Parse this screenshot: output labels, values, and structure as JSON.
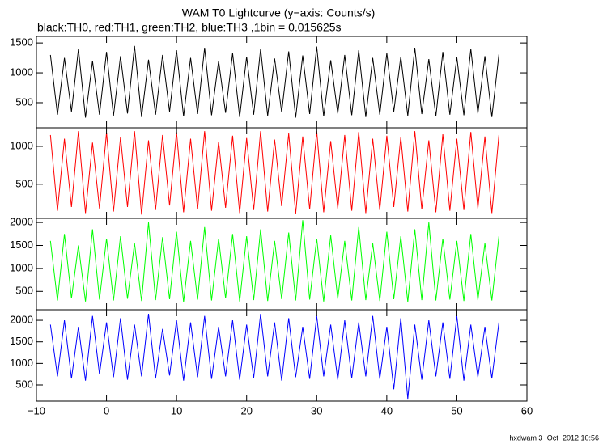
{
  "footer": "hxdwam  3−Oct−2012 10:56",
  "chart_data": [
    {
      "type": "line",
      "title": "WAM T0 Lightcurve (y−axis: Counts/s)",
      "subtitle": "black:TH0, red:TH1, green:TH2, blue:TH3 ,1bin = 0.015625s",
      "x": [
        -8,
        -7,
        -6,
        -5,
        -4,
        -3,
        -2,
        -1,
        0,
        1,
        2,
        3,
        4,
        5,
        6,
        7,
        8,
        9,
        10,
        11,
        12,
        13,
        14,
        15,
        16,
        17,
        18,
        19,
        20,
        21,
        22,
        23,
        24,
        25,
        26,
        27,
        28,
        29,
        30,
        31,
        32,
        33,
        34,
        35,
        36,
        37,
        38,
        39,
        40,
        41,
        42,
        43,
        44,
        45,
        46,
        47,
        48,
        49,
        50,
        51,
        52,
        53,
        54,
        55,
        56
      ],
      "series": [
        {
          "name": "TH0",
          "color": "#000000",
          "values": [
            1300,
            300,
            1250,
            350,
            1400,
            250,
            1200,
            300,
            1350,
            280,
            1280,
            320,
            1450,
            260,
            1220,
            300,
            1300,
            350,
            1380,
            270,
            1250,
            310,
            1420,
            290,
            1200,
            330,
            1330,
            260,
            1270,
            300,
            1400,
            280,
            1240,
            340,
            1360,
            250,
            1290,
            310,
            1440,
            270,
            1210,
            320,
            1300,
            290,
            1380,
            260,
            1250,
            300,
            1330,
            350,
            1270,
            280,
            1420,
            310,
            1230,
            270,
            1350,
            300,
            1260,
            290,
            1400,
            320,
            1280,
            260,
            1310
          ]
        }
      ],
      "ylim": [
        80,
        1610
      ],
      "yticks": [
        500,
        1000,
        1500
      ]
    },
    {
      "type": "line",
      "x": [
        -8,
        -7,
        -6,
        -5,
        -4,
        -3,
        -2,
        -1,
        0,
        1,
        2,
        3,
        4,
        5,
        6,
        7,
        8,
        9,
        10,
        11,
        12,
        13,
        14,
        15,
        16,
        17,
        18,
        19,
        20,
        21,
        22,
        23,
        24,
        25,
        26,
        27,
        28,
        29,
        30,
        31,
        32,
        33,
        34,
        35,
        36,
        37,
        38,
        39,
        40,
        41,
        42,
        43,
        44,
        45,
        46,
        47,
        48,
        49,
        50,
        51,
        52,
        53,
        54,
        55,
        56
      ],
      "series": [
        {
          "name": "TH1",
          "color": "#ff0000",
          "values": [
            1150,
            150,
            1100,
            200,
            1200,
            120,
            1050,
            180,
            1180,
            140,
            1120,
            200,
            1200,
            100,
            1080,
            160,
            1150,
            220,
            1190,
            130,
            1100,
            170,
            1200,
            150,
            1060,
            190,
            1140,
            120,
            1110,
            160,
            1200,
            140,
            1090,
            210,
            1170,
            110,
            1130,
            170,
            1200,
            130,
            1070,
            180,
            1150,
            150,
            1190,
            120,
            1100,
            160,
            1140,
            200,
            1120,
            140,
            1200,
            170,
            1080,
            130,
            1160,
            150,
            1100,
            160,
            1190,
            180,
            1130,
            120,
            1150
          ]
        }
      ],
      "ylim": [
        50,
        1245
      ],
      "yticks": [
        500,
        1000
      ]
    },
    {
      "type": "line",
      "x": [
        -8,
        -7,
        -6,
        -5,
        -4,
        -3,
        -2,
        -1,
        0,
        1,
        2,
        3,
        4,
        5,
        6,
        7,
        8,
        9,
        10,
        11,
        12,
        13,
        14,
        15,
        16,
        17,
        18,
        19,
        20,
        21,
        22,
        23,
        24,
        25,
        26,
        27,
        28,
        29,
        30,
        31,
        32,
        33,
        34,
        35,
        36,
        37,
        38,
        39,
        40,
        41,
        42,
        43,
        44,
        45,
        46,
        47,
        48,
        49,
        50,
        51,
        52,
        53,
        54,
        55,
        56
      ],
      "series": [
        {
          "name": "TH2",
          "color": "#00ff00",
          "values": [
            1600,
            300,
            1750,
            350,
            1500,
            280,
            1850,
            320,
            1650,
            300,
            1700,
            340,
            1550,
            290,
            2000,
            310,
            1680,
            330,
            1800,
            270,
            1600,
            320,
            1900,
            300,
            1650,
            350,
            1750,
            280,
            1700,
            310,
            1850,
            290,
            1600,
            330,
            1780,
            300,
            2050,
            320,
            1650,
            280,
            1720,
            340,
            1600,
            300,
            1900,
            310,
            1550,
            290,
            1800,
            330,
            1700,
            270,
            1850,
            310,
            2000,
            300,
            1650,
            320,
            1600,
            290,
            1750,
            310,
            1550,
            300,
            1700
          ]
        }
      ],
      "ylim": [
        100,
        2090
      ],
      "yticks": [
        500,
        1000,
        1500,
        2000
      ]
    },
    {
      "type": "line",
      "x": [
        -8,
        -7,
        -6,
        -5,
        -4,
        -3,
        -2,
        -1,
        0,
        1,
        2,
        3,
        4,
        5,
        6,
        7,
        8,
        9,
        10,
        11,
        12,
        13,
        14,
        15,
        16,
        17,
        18,
        19,
        20,
        21,
        22,
        23,
        24,
        25,
        26,
        27,
        28,
        29,
        30,
        31,
        32,
        33,
        34,
        35,
        36,
        37,
        38,
        39,
        40,
        41,
        42,
        43,
        44,
        45,
        46,
        47,
        48,
        49,
        50,
        51,
        52,
        53,
        54,
        55,
        56
      ],
      "series": [
        {
          "name": "TH3",
          "color": "#0000ff",
          "values": [
            1900,
            700,
            2000,
            650,
            1850,
            600,
            2100,
            750,
            1950,
            680,
            2050,
            620,
            1900,
            700,
            2150,
            650,
            1800,
            720,
            2000,
            600,
            1950,
            680,
            2100,
            640,
            1850,
            700,
            2000,
            620,
            1900,
            660,
            2150,
            700,
            1950,
            600,
            2050,
            680,
            1850,
            640,
            2100,
            700,
            1900,
            620,
            2000,
            660,
            1950,
            700,
            2100,
            640,
            1850,
            400,
            2050,
            180,
            1900,
            620,
            2000,
            700,
            1950,
            640,
            2100,
            600,
            1900,
            680,
            1850,
            650,
            1950
          ]
        }
      ],
      "ylim": [
        125,
        2245
      ],
      "yticks": [
        500,
        1000,
        1500,
        2000
      ],
      "xlim": [
        -10,
        60
      ],
      "xticks": [
        {
          "value": -10,
          "label": "−10"
        },
        0,
        10,
        20,
        30,
        40,
        50,
        60
      ]
    }
  ]
}
